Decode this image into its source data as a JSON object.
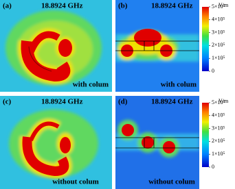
{
  "panels": [
    {
      "label": "(a)",
      "frequency": "18.8924 GHz",
      "caption": "with colum"
    },
    {
      "label": "(b)",
      "frequency": "18.8924 GHz",
      "caption": "with colum"
    },
    {
      "label": "(c)",
      "frequency": "18.8924 GHz",
      "caption": "without colum"
    },
    {
      "label": "(d)",
      "frequency": "18.8924 GHz",
      "caption": "without colum"
    }
  ],
  "colorbars": [
    {
      "unit": "V/m",
      "ticks": [
        {
          "value": 500000,
          "label": "5×10⁵"
        },
        {
          "value": 400000,
          "label": "4×10⁵"
        },
        {
          "value": 300000,
          "label": "3×10⁵"
        },
        {
          "value": 200000,
          "label": "2×10⁵"
        },
        {
          "value": 100000,
          "label": "1×10⁵"
        },
        0
      ]
    },
    {
      "unit": "V/m",
      "ticks": [
        {
          "value": 500000,
          "label": "5×10⁵"
        },
        {
          "value": 400000,
          "label": "4×10⁵"
        },
        {
          "value": 300000,
          "label": "3×10⁵"
        },
        {
          "value": 200000,
          "label": "2×10⁵"
        },
        {
          "value": 100000,
          "label": "1×10⁵"
        },
        0
      ]
    }
  ]
}
